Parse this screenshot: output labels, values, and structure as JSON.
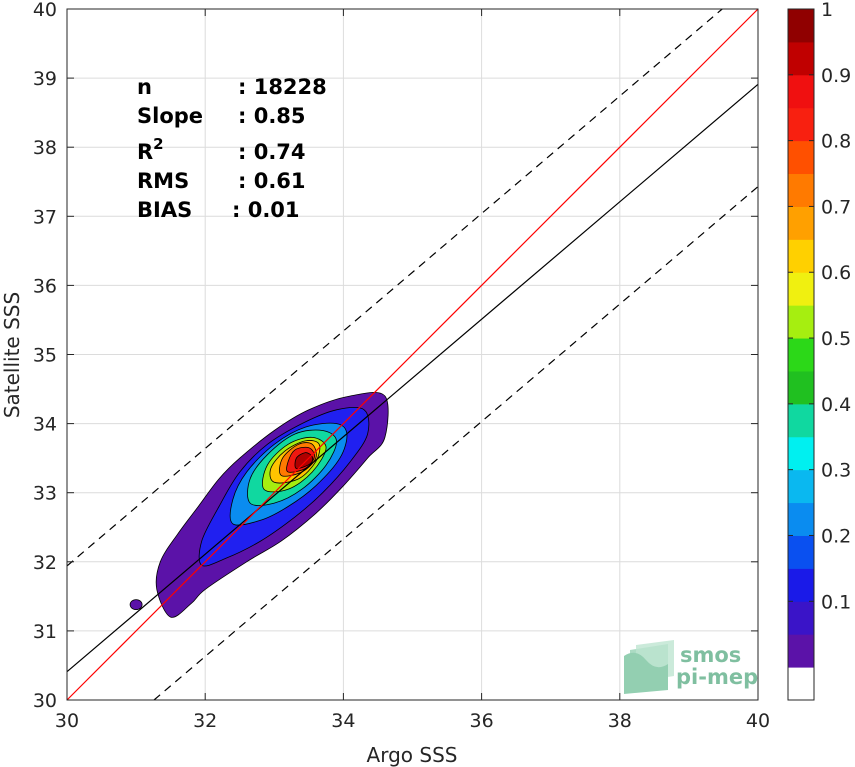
{
  "chart_data": {
    "type": "contour",
    "xlabel": "Argo SSS",
    "ylabel": "Satellite SSS",
    "xlim": [
      30,
      40
    ],
    "ylim": [
      30,
      40
    ],
    "xticks": [
      "30",
      "32",
      "34",
      "36",
      "38",
      "40"
    ],
    "yticks": [
      "30",
      "31",
      "32",
      "33",
      "34",
      "35",
      "36",
      "37",
      "38",
      "39",
      "40"
    ],
    "grid": true,
    "stats": [
      {
        "label": "n",
        "value": ": 18228"
      },
      {
        "label": "Slope",
        "value": ": 0.85"
      },
      {
        "label": "R",
        "sup": "2",
        "value": ": 0.74"
      },
      {
        "label": "RMS",
        "value": ": 0.61"
      },
      {
        "label": "BIAS",
        "value": ": 0.01"
      }
    ],
    "lines": {
      "identity": {
        "slope": 1,
        "intercept": 0,
        "color": "#ff0000"
      },
      "fit": {
        "slope": 0.85,
        "intercept": 4.91,
        "color": "#000000"
      },
      "upper_dashed": {
        "slope": 0.85,
        "intercept": 6.44,
        "color": "#000000",
        "dash": true
      },
      "lower_dashed": {
        "slope": 0.85,
        "intercept": 3.43,
        "color": "#000000",
        "dash": true
      }
    },
    "density_peak": {
      "x": 33.45,
      "y": 33.45
    },
    "contour_levels": [
      {
        "level": 0.05,
        "color": "#5b12a8",
        "points": [
          [
            31.5,
            31.2
          ],
          [
            31.8,
            31.4
          ],
          [
            32.0,
            31.6
          ],
          [
            32.6,
            32.0
          ],
          [
            33.1,
            32.3
          ],
          [
            33.6,
            32.7
          ],
          [
            34.0,
            33.1
          ],
          [
            34.35,
            33.5
          ],
          [
            34.6,
            33.8
          ],
          [
            34.6,
            34.4
          ],
          [
            34.1,
            34.4
          ],
          [
            33.5,
            34.2
          ],
          [
            33.0,
            33.9
          ],
          [
            32.5,
            33.5
          ],
          [
            32.2,
            33.2
          ],
          [
            31.9,
            32.8
          ],
          [
            31.6,
            32.4
          ],
          [
            31.35,
            32.0
          ],
          [
            31.3,
            31.6
          ]
        ]
      },
      {
        "level": 0.15,
        "color": "#2020f0",
        "points": [
          [
            31.95,
            31.95
          ],
          [
            32.3,
            32.05
          ],
          [
            32.8,
            32.3
          ],
          [
            33.3,
            32.65
          ],
          [
            33.7,
            33.0
          ],
          [
            34.1,
            33.45
          ],
          [
            34.35,
            33.85
          ],
          [
            34.3,
            34.2
          ],
          [
            33.9,
            34.2
          ],
          [
            33.4,
            34.0
          ],
          [
            32.9,
            33.7
          ],
          [
            32.5,
            33.3
          ],
          [
            32.2,
            32.8
          ],
          [
            31.95,
            32.3
          ]
        ]
      },
      {
        "level": 0.3,
        "color": "#0a8cf0",
        "points": [
          [
            32.4,
            32.55
          ],
          [
            32.8,
            32.6
          ],
          [
            33.2,
            32.8
          ],
          [
            33.6,
            33.1
          ],
          [
            33.95,
            33.5
          ],
          [
            34.05,
            33.85
          ],
          [
            33.9,
            34.0
          ],
          [
            33.45,
            33.95
          ],
          [
            33.0,
            33.7
          ],
          [
            32.6,
            33.3
          ],
          [
            32.4,
            32.9
          ]
        ]
      },
      {
        "level": 0.45,
        "color": "#10d8a0",
        "points": [
          [
            32.65,
            32.85
          ],
          [
            33.0,
            32.85
          ],
          [
            33.4,
            33.05
          ],
          [
            33.75,
            33.4
          ],
          [
            33.9,
            33.75
          ],
          [
            33.7,
            33.9
          ],
          [
            33.3,
            33.85
          ],
          [
            32.9,
            33.55
          ],
          [
            32.65,
            33.2
          ]
        ]
      },
      {
        "level": 0.6,
        "color": "#a6ee10",
        "points": [
          [
            32.85,
            33.05
          ],
          [
            33.2,
            33.05
          ],
          [
            33.55,
            33.3
          ],
          [
            33.75,
            33.65
          ],
          [
            33.55,
            33.8
          ],
          [
            33.2,
            33.7
          ],
          [
            32.9,
            33.4
          ]
        ]
      },
      {
        "level": 0.7,
        "color": "#ffc400",
        "points": [
          [
            33.0,
            33.15
          ],
          [
            33.35,
            33.2
          ],
          [
            33.6,
            33.45
          ],
          [
            33.65,
            33.7
          ],
          [
            33.45,
            33.75
          ],
          [
            33.15,
            33.6
          ],
          [
            32.95,
            33.35
          ]
        ]
      },
      {
        "level": 0.8,
        "color": "#ff7a00",
        "points": [
          [
            33.1,
            33.25
          ],
          [
            33.4,
            33.3
          ],
          [
            33.6,
            33.5
          ],
          [
            33.55,
            33.7
          ],
          [
            33.35,
            33.7
          ],
          [
            33.12,
            33.5
          ]
        ]
      },
      {
        "level": 0.9,
        "color": "#f01810",
        "points": [
          [
            33.2,
            33.3
          ],
          [
            33.45,
            33.35
          ],
          [
            33.58,
            33.52
          ],
          [
            33.5,
            33.65
          ],
          [
            33.3,
            33.62
          ],
          [
            33.2,
            33.45
          ]
        ]
      },
      {
        "level": 1.0,
        "color": "#b00000",
        "points": [
          [
            33.32,
            33.35
          ],
          [
            33.52,
            33.42
          ],
          [
            33.55,
            33.52
          ],
          [
            33.45,
            33.58
          ],
          [
            33.32,
            33.5
          ]
        ]
      }
    ],
    "outlier_blob": {
      "x": 31.0,
      "y": 31.38
    },
    "colorbar": {
      "ticks": [
        "0.1",
        "0.2",
        "0.3",
        "0.4",
        "0.5",
        "0.6",
        "0.7",
        "0.8",
        "0.9",
        "1"
      ],
      "bands": [
        "#ffffff",
        "#5b12a8",
        "#3a14c8",
        "#1a1ae8",
        "#0a50f0",
        "#0a8cf0",
        "#0ab8f0",
        "#00f0f0",
        "#10d8a0",
        "#20c020",
        "#2cd818",
        "#a6ee10",
        "#f0f010",
        "#ffd000",
        "#ffa000",
        "#ff7a00",
        "#ff5000",
        "#f82010",
        "#f01010",
        "#c00000",
        "#900000"
      ],
      "range": [
        -0.05,
        1
      ]
    }
  },
  "logo": {
    "line1": "smos",
    "line2": "pi-mep"
  }
}
